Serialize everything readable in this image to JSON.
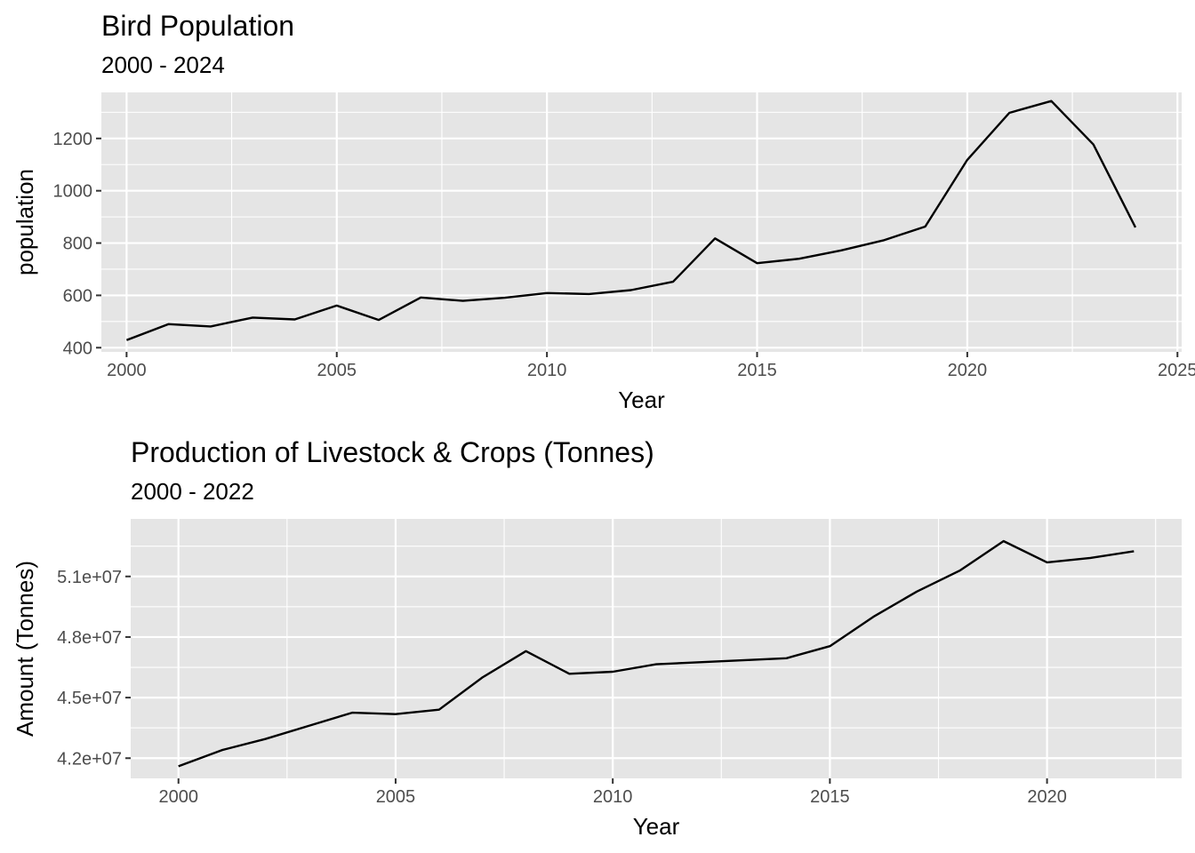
{
  "chart_data": [
    {
      "type": "line",
      "title": "Bird Population",
      "subtitle": "2000 - 2024",
      "xlabel": "Year",
      "ylabel": "population",
      "xlim": [
        1999.4,
        2025.1
      ],
      "ylim": [
        384,
        1376
      ],
      "x_ticks": [
        2000,
        2005,
        2010,
        2015,
        2020,
        2025
      ],
      "x_tick_labels": [
        "2000",
        "2005",
        "2010",
        "2015",
        "2020",
        "2025"
      ],
      "y_ticks": [
        400,
        600,
        800,
        1000,
        1200
      ],
      "y_tick_labels": [
        "400",
        "600",
        "800",
        "1000",
        "1200"
      ],
      "grid": true,
      "legend": "none",
      "series": [
        {
          "color": "#000000",
          "x": [
            2000,
            2001,
            2002,
            2003,
            2004,
            2005,
            2006,
            2007,
            2008,
            2009,
            2010,
            2011,
            2012,
            2013,
            2014,
            2015,
            2016,
            2017,
            2018,
            2019,
            2020,
            2021,
            2022,
            2023,
            2024
          ],
          "values": [
            429,
            490,
            481,
            515,
            508,
            561,
            506,
            592,
            579,
            591,
            609,
            605,
            620,
            652,
            818,
            723,
            740,
            772,
            810,
            863,
            1118,
            1298,
            1343,
            1177,
            860
          ]
        }
      ]
    },
    {
      "type": "line",
      "title": "Production of Livestock & Crops (Tonnes)",
      "subtitle": "2000 - 2022",
      "xlabel": "Year",
      "ylabel": "Amount (Tonnes)",
      "xlim": [
        1998.9,
        2023.1
      ],
      "ylim": [
        41000000,
        53850000
      ],
      "x_ticks": [
        2000,
        2005,
        2010,
        2015,
        2020
      ],
      "x_tick_labels": [
        "2000",
        "2005",
        "2010",
        "2015",
        "2020"
      ],
      "y_ticks": [
        42000000,
        45000000,
        48000000,
        51000000
      ],
      "y_tick_labels": [
        "4.2e+07",
        "4.5e+07",
        "4.8e+07",
        "5.1e+07"
      ],
      "grid": true,
      "legend": "none",
      "series": [
        {
          "color": "#000000",
          "x": [
            2000,
            2001,
            2002,
            2003,
            2004,
            2005,
            2006,
            2007,
            2008,
            2009,
            2010,
            2011,
            2012,
            2013,
            2014,
            2015,
            2016,
            2017,
            2018,
            2019,
            2020,
            2021,
            2022
          ],
          "values": [
            41600000,
            42400000,
            42950000,
            43600000,
            44250000,
            44180000,
            44400000,
            46000000,
            47300000,
            46180000,
            46280000,
            46650000,
            46750000,
            46850000,
            46950000,
            47550000,
            49000000,
            50250000,
            51300000,
            52750000,
            51700000,
            51920000,
            52250000
          ]
        }
      ]
    }
  ]
}
